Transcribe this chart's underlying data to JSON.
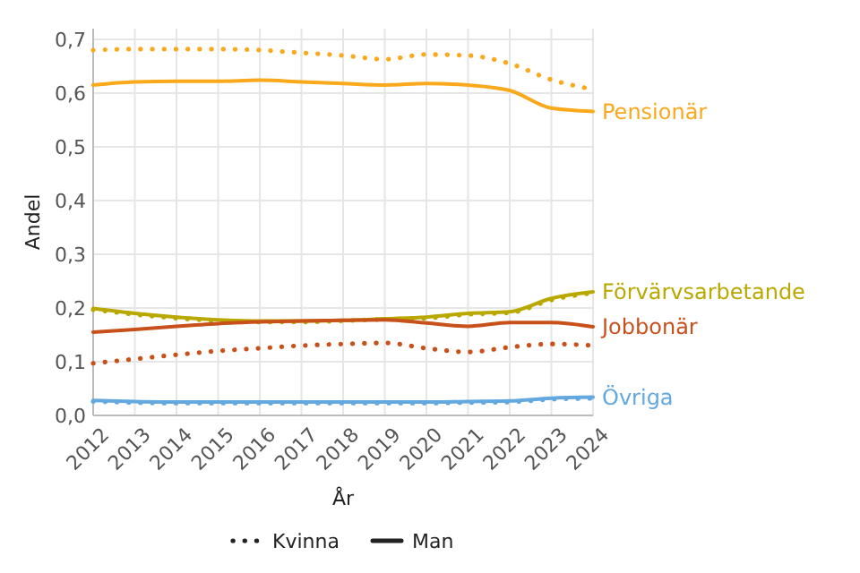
{
  "chart_data": {
    "type": "line",
    "xlabel": "År",
    "ylabel": "Andel",
    "x": [
      2012,
      2013,
      2014,
      2015,
      2016,
      2017,
      2018,
      2019,
      2020,
      2021,
      2022,
      2023,
      2024
    ],
    "xlim": [
      2012,
      2024
    ],
    "xticks": [
      2012,
      2013,
      2014,
      2015,
      2016,
      2017,
      2018,
      2019,
      2020,
      2021,
      2022,
      2023,
      2024
    ],
    "ylim": [
      0,
      0.72
    ],
    "yticks": [
      {
        "value": 0,
        "label": "0,0"
      },
      {
        "value": 0.1,
        "label": "0,1"
      },
      {
        "value": 0.2,
        "label": "0,2"
      },
      {
        "value": 0.3,
        "label": "0,3"
      },
      {
        "value": 0.4,
        "label": "0,4"
      },
      {
        "value": 0.5,
        "label": "0,5"
      },
      {
        "value": 0.6,
        "label": "0,6"
      },
      {
        "value": 0.7,
        "label": "0,7"
      }
    ],
    "grid": true,
    "legend": "bottom",
    "marker": "none",
    "series": [
      {
        "color": "#f9a91b",
        "line_style": "dotted",
        "values": [
          0.68,
          0.682,
          0.682,
          0.682,
          0.68,
          0.675,
          0.67,
          0.663,
          0.672,
          0.67,
          0.655,
          0.625,
          0.607
        ]
      },
      {
        "name": "Pensionär",
        "color": "#f9a91b",
        "line_style": "solid",
        "values": [
          0.615,
          0.621,
          0.622,
          0.622,
          0.624,
          0.621,
          0.618,
          0.615,
          0.618,
          0.615,
          0.605,
          0.572,
          0.566
        ]
      },
      {
        "color": "#b8a800",
        "line_style": "dotted",
        "values": [
          0.197,
          0.188,
          0.181,
          0.176,
          0.174,
          0.174,
          0.176,
          0.179,
          0.181,
          0.188,
          0.191,
          0.215,
          0.228
        ]
      },
      {
        "name": "Förvärvsarbetande",
        "color": "#b8a800",
        "line_style": "solid",
        "values": [
          0.199,
          0.19,
          0.183,
          0.178,
          0.176,
          0.176,
          0.177,
          0.18,
          0.183,
          0.19,
          0.193,
          0.218,
          0.23
        ]
      },
      {
        "color": "#c8501a",
        "line_style": "dotted",
        "values": [
          0.097,
          0.105,
          0.113,
          0.12,
          0.125,
          0.13,
          0.133,
          0.135,
          0.125,
          0.118,
          0.127,
          0.133,
          0.13
        ]
      },
      {
        "name": "Jobbonär",
        "color": "#c8501a",
        "line_style": "solid",
        "values": [
          0.155,
          0.16,
          0.166,
          0.171,
          0.174,
          0.176,
          0.177,
          0.178,
          0.172,
          0.166,
          0.173,
          0.173,
          0.165
        ]
      },
      {
        "color": "#64a8e0",
        "line_style": "dotted",
        "values": [
          0.026,
          0.024,
          0.023,
          0.023,
          0.023,
          0.023,
          0.023,
          0.023,
          0.023,
          0.024,
          0.025,
          0.03,
          0.032
        ]
      },
      {
        "name": "Övriga",
        "color": "#64a8e0",
        "line_style": "solid",
        "values": [
          0.028,
          0.026,
          0.025,
          0.025,
          0.025,
          0.025,
          0.025,
          0.025,
          0.025,
          0.026,
          0.027,
          0.032,
          0.034
        ]
      }
    ],
    "annotations": [
      "Kvinna",
      "Man"
    ]
  }
}
